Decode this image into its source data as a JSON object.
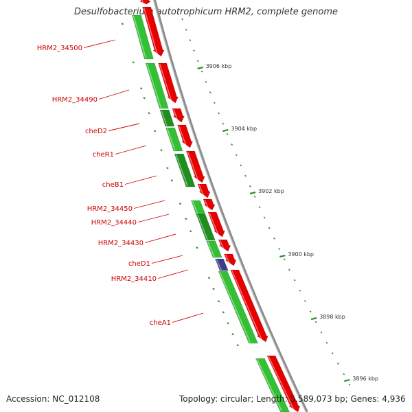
{
  "title": "Desulfobacterium autotrophicum HRM2, complete genome",
  "footer": {
    "accession": "Accession: NC_012108",
    "summary": "Topology: circular; Length: 5,589,073 bp; Genes: 4,936"
  },
  "colors": {
    "forward_gene": "#e80000",
    "reverse_gene": "#34c034",
    "reverse_gene_dark": "#1e8f1e",
    "selected_gene": "#3c3c8c",
    "label": "#cc0000",
    "backbone": "#8c8c8c",
    "tick": "#2f8f2f"
  },
  "gene_labels": [
    "HRM2_34500",
    "HRM2_34490",
    "cheD2",
    "cheR1",
    "cheB1",
    "HRM2_34450",
    "HRM2_34440",
    "HRM2_34430",
    "cheD1",
    "HRM2_34410",
    "cheA1"
  ],
  "ruler_labels": [
    "3906 kbp",
    "3904 kbp",
    "3902 kbp",
    "3900 kbp",
    "3898 kbp",
    "3896 kbp"
  ]
}
